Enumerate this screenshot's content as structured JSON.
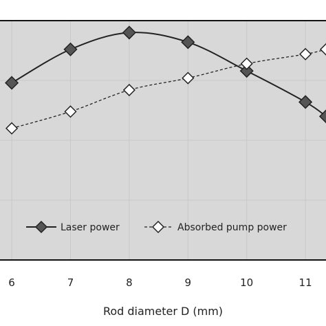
{
  "chart_data": {
    "type": "line",
    "xlabel": "Rod diameter  D (mm)",
    "ylabel": "",
    "xlim": [
      5.8,
      11.35
    ],
    "ylim": [
      0,
      1
    ],
    "x": [
      6,
      7,
      8,
      9,
      10,
      11,
      11.35
    ],
    "x_ticks": [
      "6",
      "7",
      "8",
      "9",
      "10",
      "11"
    ],
    "grid": true,
    "legend": "bottom",
    "series": [
      {
        "name": "Laser power",
        "style": "solid",
        "marker": "filled-diamond",
        "color": "#555555",
        "values": [
          0.74,
          0.88,
          0.95,
          0.91,
          0.79,
          0.66,
          0.6
        ]
      },
      {
        "name": "Absorbed pump power",
        "style": "dashed",
        "marker": "open-diamond",
        "color": "#333333",
        "values": [
          0.55,
          0.62,
          0.71,
          0.76,
          0.82,
          0.86,
          0.88
        ]
      }
    ]
  },
  "colors": {
    "plot_bg": "#d8d8d8",
    "grid": "#c8c8c8",
    "axis": "#111111"
  }
}
